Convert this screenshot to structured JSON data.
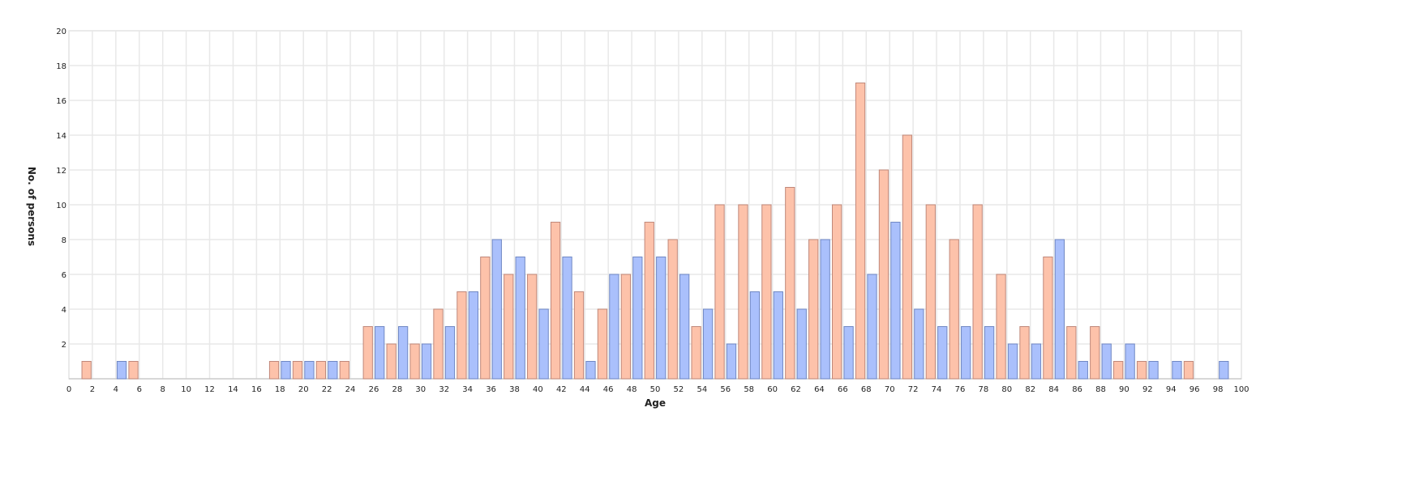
{
  "chart_data": {
    "type": "bar",
    "title": "",
    "xlabel": "Age",
    "ylabel": "No. of persons",
    "xlim": [
      0,
      100
    ],
    "ylim": [
      0,
      20
    ],
    "xticks": [
      0,
      2,
      4,
      6,
      8,
      10,
      12,
      14,
      16,
      18,
      20,
      22,
      24,
      26,
      28,
      30,
      32,
      34,
      36,
      38,
      40,
      42,
      44,
      46,
      48,
      50,
      52,
      54,
      56,
      58,
      60,
      62,
      64,
      66,
      68,
      70,
      72,
      74,
      76,
      78,
      80,
      82,
      84,
      86,
      88,
      90,
      92,
      94,
      96,
      98,
      100
    ],
    "yticks": [
      2,
      4,
      6,
      8,
      10,
      12,
      14,
      16,
      18,
      20
    ],
    "grid": true,
    "colors": {
      "odd": "#fdc2aa",
      "odd_stroke": "#c0887a",
      "even": "#aac0fc",
      "even_stroke": "#7088c4",
      "grid": "#e8e8e8"
    },
    "ages": [
      0,
      1,
      2,
      3,
      4,
      5,
      6,
      7,
      8,
      9,
      10,
      11,
      12,
      13,
      14,
      15,
      16,
      17,
      18,
      19,
      20,
      21,
      22,
      23,
      24,
      25,
      26,
      27,
      28,
      29,
      30,
      31,
      32,
      33,
      34,
      35,
      36,
      37,
      38,
      39,
      40,
      41,
      42,
      43,
      44,
      45,
      46,
      47,
      48,
      49,
      50,
      51,
      52,
      53,
      54,
      55,
      56,
      57,
      58,
      59,
      60,
      61,
      62,
      63,
      64,
      65,
      66,
      67,
      68,
      69,
      70,
      71,
      72,
      73,
      74,
      75,
      76,
      77,
      78,
      79,
      80,
      81,
      82,
      83,
      84,
      85,
      86,
      87,
      88,
      89,
      90,
      91,
      92,
      93,
      94,
      95,
      96,
      97,
      98,
      99
    ],
    "values": [
      0,
      1,
      0,
      0,
      1,
      1,
      0,
      0,
      0,
      0,
      0,
      0,
      0,
      0,
      0,
      0,
      0,
      1,
      1,
      1,
      1,
      1,
      1,
      1,
      0,
      3,
      3,
      2,
      3,
      2,
      2,
      4,
      3,
      5,
      5,
      7,
      8,
      6,
      7,
      6,
      4,
      9,
      7,
      5,
      1,
      4,
      6,
      6,
      7,
      9,
      7,
      8,
      6,
      3,
      4,
      10,
      2,
      10,
      5,
      10,
      5,
      11,
      4,
      8,
      8,
      10,
      3,
      17,
      6,
      12,
      9,
      14,
      4,
      10,
      3,
      8,
      3,
      10,
      3,
      6,
      2,
      3,
      2,
      7,
      8,
      3,
      1,
      3,
      2,
      1,
      2,
      1,
      1,
      0,
      1,
      1,
      0,
      0,
      1,
      0
    ]
  }
}
